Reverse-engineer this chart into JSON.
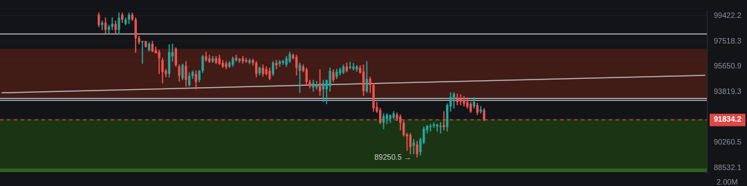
{
  "chart_data": {
    "type": "candlestick",
    "categories": [
      null,
      null,
      null,
      null,
      null,
      null,
      null,
      null,
      null,
      null,
      null,
      null,
      null,
      null,
      null,
      null,
      null,
      null,
      null,
      null,
      null,
      null,
      null,
      null,
      null,
      null,
      null,
      null,
      null,
      null,
      null,
      null,
      null,
      null,
      null,
      null,
      null,
      null,
      null,
      null,
      null,
      null,
      null,
      null,
      null,
      null,
      null,
      null,
      null,
      null,
      null,
      null,
      null,
      null,
      null,
      null,
      null,
      null,
      null,
      null,
      null,
      null,
      null,
      null,
      null,
      null,
      null,
      null,
      null,
      null,
      null,
      null,
      null,
      null,
      null,
      null,
      null,
      null,
      null,
      null,
      null,
      null,
      null,
      null,
      null,
      null,
      null,
      null,
      null,
      null,
      null,
      null,
      null,
      null,
      null,
      null,
      null,
      null,
      null,
      null,
      null,
      null,
      null,
      null,
      null,
      null,
      null,
      null,
      null,
      null,
      null,
      null,
      null,
      null,
      null,
      null,
      null,
      null,
      null,
      null,
      null,
      null,
      null,
      null,
      null,
      null,
      null,
      null,
      null,
      null,
      null,
      null,
      null,
      null,
      null,
      null,
      null,
      null,
      null,
      null,
      null,
      null,
      null,
      null,
      null,
      null,
      null,
      null,
      null,
      null,
      null,
      null,
      null,
      null,
      null,
      null,
      null,
      null,
      null,
      null,
      null,
      null,
      null,
      null,
      null,
      null,
      null,
      null,
      null,
      null,
      null,
      null,
      null,
      null,
      null,
      null,
      null,
      null,
      null,
      null,
      null,
      null,
      null,
      null,
      null,
      null,
      null,
      null,
      null,
      null,
      null,
      null,
      null,
      null,
      null,
      null,
      null,
      null,
      null,
      null,
      null,
      null,
      null,
      null,
      null,
      null,
      null,
      null,
      null,
      null,
      null
    ],
    "ohlc": [
      null,
      null,
      null,
      null,
      null,
      null,
      null,
      null,
      null,
      null,
      null,
      null,
      null,
      null,
      null,
      null,
      null,
      null,
      null,
      null,
      null,
      null,
      null,
      null,
      null,
      null,
      null,
      null,
      null,
      [
        99510,
        99650,
        98590,
        98730
      ],
      [
        98730,
        99050,
        98360,
        98910
      ],
      [
        98910,
        99280,
        98120,
        98360
      ],
      [
        98360,
        98730,
        98120,
        98590
      ],
      [
        98590,
        99280,
        98360,
        98820
      ],
      [
        98820,
        99050,
        98120,
        98360
      ],
      [
        98360,
        99650,
        98030,
        99280
      ],
      [
        99510,
        99650,
        98910,
        99140
      ],
      [
        98820,
        99280,
        98730,
        99140
      ],
      [
        99140,
        99650,
        98820,
        99510
      ],
      [
        99510,
        99650,
        99050,
        99140
      ],
      [
        99140,
        99280,
        96680,
        97750
      ],
      [
        97750,
        97890,
        97280,
        97430
      ],
      [
        97430,
        97520,
        95880,
        97520
      ],
      [
        97520,
        97520,
        97050,
        97100
      ],
      [
        96860,
        97430,
        96770,
        97330
      ],
      [
        97330,
        97520,
        96720,
        96770
      ],
      [
        96860,
        97100,
        96630,
        96630
      ],
      [
        96720,
        96860,
        95110,
        96260
      ],
      [
        96120,
        96260,
        94440,
        95250
      ],
      [
        95340,
        95470,
        94890,
        95110
      ],
      [
        95110,
        97280,
        94890,
        96720
      ],
      [
        96400,
        97330,
        96020,
        96720
      ],
      [
        96960,
        97050,
        95650,
        95740
      ],
      [
        95650,
        95790,
        94580,
        94980
      ],
      [
        94800,
        95840,
        94670,
        95790
      ],
      [
        95700,
        96020,
        94220,
        94670
      ],
      [
        94310,
        95200,
        94220,
        94980
      ],
      [
        94940,
        95340,
        94760,
        95250
      ],
      [
        95110,
        95340,
        94000,
        94530
      ],
      [
        94670,
        95380,
        94530,
        95340
      ],
      [
        95340,
        96490,
        95200,
        96400
      ],
      [
        96400,
        96720,
        96020,
        96120
      ],
      [
        96260,
        96490,
        95930,
        96020
      ],
      [
        96020,
        96400,
        95930,
        96260
      ],
      [
        96260,
        96400,
        95840,
        95930
      ],
      [
        96260,
        96490,
        95790,
        95840
      ],
      [
        95930,
        96120,
        95560,
        95650
      ],
      [
        95880,
        96020,
        95470,
        95610
      ],
      [
        95650,
        96020,
        95560,
        95930
      ],
      [
        95790,
        96350,
        95650,
        96260
      ],
      [
        96300,
        96490,
        96020,
        96120
      ],
      [
        96070,
        96260,
        95930,
        96210
      ],
      [
        96260,
        96400,
        95880,
        96020
      ],
      [
        96120,
        96260,
        95930,
        96020
      ],
      [
        95930,
        96210,
        95840,
        96120
      ],
      [
        96120,
        96210,
        95740,
        95930
      ],
      [
        95930,
        96020,
        94890,
        95110
      ],
      [
        95160,
        95650,
        95030,
        95560
      ],
      [
        95560,
        95790,
        94940,
        95110
      ],
      [
        95470,
        95650,
        95030,
        95110
      ],
      [
        95340,
        95560,
        94670,
        94760
      ],
      [
        95110,
        96020,
        94980,
        95930
      ],
      [
        95930,
        96120,
        95470,
        95740
      ],
      [
        95840,
        96120,
        95650,
        96020
      ],
      [
        95930,
        96120,
        95790,
        96070
      ],
      [
        95790,
        96400,
        95650,
        96260
      ],
      [
        96020,
        96720,
        95930,
        96580
      ],
      [
        96490,
        96580,
        96210,
        96260
      ],
      [
        96350,
        96490,
        95030,
        95560
      ],
      [
        95340,
        95930,
        93770,
        95790
      ],
      [
        95650,
        95790,
        95250,
        95340
      ],
      [
        95430,
        95560,
        94310,
        94530
      ],
      [
        94530,
        94670,
        94090,
        94220
      ],
      [
        94130,
        94670,
        93860,
        94440
      ],
      [
        94130,
        94580,
        94000,
        94310
      ],
      [
        94440,
        95430,
        93550,
        93860
      ],
      [
        94000,
        94670,
        93100,
        94440
      ],
      [
        94000,
        94670,
        92970,
        94670
      ],
      [
        94220,
        95560,
        93860,
        95340
      ],
      [
        95250,
        95430,
        94530,
        94670
      ],
      [
        94890,
        95470,
        94760,
        95290
      ],
      [
        95160,
        95560,
        95030,
        95430
      ],
      [
        95200,
        95790,
        95110,
        95650
      ],
      [
        95650,
        95930,
        95250,
        95340
      ],
      [
        95560,
        95980,
        95470,
        95650
      ],
      [
        95470,
        95880,
        95380,
        95650
      ],
      [
        95430,
        95740,
        95290,
        95650
      ],
      [
        95560,
        95740,
        95160,
        95200
      ],
      [
        95290,
        95790,
        93550,
        93860
      ],
      [
        93860,
        96020,
        93770,
        94760
      ],
      [
        94760,
        94890,
        93770,
        94310
      ],
      [
        94310,
        94440,
        92430,
        92650
      ],
      [
        92740,
        93100,
        92340,
        92430
      ],
      [
        92520,
        92650,
        91550,
        91640
      ],
      [
        91640,
        92290,
        91210,
        92110
      ],
      [
        91900,
        92290,
        91550,
        92200
      ],
      [
        91900,
        92200,
        91640,
        92160
      ],
      [
        91980,
        92430,
        91900,
        92290
      ],
      [
        92200,
        92340,
        91770,
        91900
      ],
      [
        92070,
        92200,
        91120,
        91640
      ],
      [
        91640,
        91770,
        90690,
        90780
      ],
      [
        90820,
        90910,
        89700,
        90690
      ],
      [
        90780,
        90910,
        89480,
        89960
      ],
      [
        90040,
        90480,
        89480,
        90260
      ],
      [
        90130,
        90350,
        89250.5,
        89480
      ],
      [
        89610,
        90560,
        89400,
        90480
      ],
      [
        90260,
        91340,
        90170,
        91210
      ],
      [
        91120,
        91470,
        90910,
        91420
      ],
      [
        91340,
        91550,
        91040,
        91420
      ],
      [
        91420,
        91640,
        91290,
        91510
      ],
      [
        91380,
        91550,
        91040,
        91510
      ],
      [
        91340,
        91640,
        90910,
        91420
      ],
      [
        91470,
        92430,
        91120,
        91340
      ],
      [
        91340,
        92970,
        91040,
        92880
      ],
      [
        92790,
        93770,
        92430,
        93460
      ],
      [
        93330,
        93770,
        92650,
        93680
      ],
      [
        93420,
        93680,
        92880,
        93100
      ],
      [
        93330,
        93640,
        92880,
        93100
      ],
      [
        93240,
        93510,
        92790,
        92970
      ],
      [
        93100,
        93420,
        92650,
        92740
      ],
      [
        92970,
        93100,
        92340,
        92430
      ],
      [
        92790,
        93420,
        92650,
        93100
      ],
      [
        92880,
        93010,
        92200,
        92340
      ],
      [
        92430,
        92790,
        92290,
        92560
      ],
      [
        92520,
        92650,
        91770,
        91834.2
      ],
      null,
      null,
      null,
      null,
      null,
      null,
      null,
      null,
      null,
      null,
      null,
      null,
      null,
      null,
      null,
      null,
      null,
      null,
      null,
      null,
      null,
      null,
      null,
      null,
      null,
      null,
      null,
      null,
      null,
      null,
      null,
      null,
      null,
      null,
      null,
      null,
      null,
      null,
      null,
      null,
      null,
      null,
      null,
      null,
      null,
      null,
      null,
      null,
      null,
      null,
      null,
      null,
      null,
      null,
      null,
      null,
      null,
      null,
      null,
      null,
      null,
      null,
      null,
      null,
      null,
      null
    ],
    "series": [
      {
        "type": "line",
        "color": "#bdbdbd",
        "values": [
          93753,
          null,
          null,
          null,
          null,
          null,
          null,
          null,
          null,
          null,
          null,
          null,
          null,
          null,
          null,
          null,
          null,
          null,
          null,
          null,
          null,
          null,
          null,
          null,
          null,
          null,
          null,
          null,
          null,
          null,
          null,
          null,
          null,
          null,
          null,
          null,
          null,
          null,
          null,
          null,
          null,
          null,
          null,
          null,
          null,
          null,
          null,
          null,
          null,
          null,
          null,
          null,
          null,
          null,
          null,
          null,
          null,
          null,
          null,
          null,
          null,
          null,
          null,
          null,
          null,
          null,
          null,
          null,
          null,
          null,
          null,
          null,
          null,
          null,
          null,
          null,
          null,
          null,
          null,
          null,
          null,
          null,
          null,
          null,
          null,
          null,
          null,
          null,
          null,
          null,
          null,
          null,
          null,
          null,
          null,
          null,
          null,
          null,
          null,
          null,
          null,
          null,
          null,
          null,
          null,
          null,
          null,
          null,
          null,
          null,
          null,
          null,
          null,
          null,
          null,
          null,
          null,
          null,
          null,
          null,
          null,
          null,
          null,
          null,
          null,
          null,
          null,
          null,
          null,
          null,
          null,
          null,
          null,
          null,
          null,
          null,
          null,
          null,
          null,
          null,
          null,
          null,
          null,
          null,
          null,
          null,
          null,
          null,
          null,
          null,
          null,
          null,
          null,
          null,
          null,
          null,
          null,
          null,
          null,
          null,
          null,
          null,
          null,
          null,
          null,
          null,
          null,
          null,
          null,
          null,
          null,
          null,
          null,
          null,
          null,
          null,
          null,
          null,
          null,
          null,
          null,
          null,
          null,
          null,
          null,
          null,
          null,
          null,
          null,
          null,
          null,
          null,
          null,
          null,
          null,
          null,
          null,
          null,
          null,
          null,
          null,
          null,
          null,
          null,
          null,
          null,
          null,
          null,
          null,
          null,
          95015
        ]
      }
    ],
    "log": true,
    "ylim": [
      88197,
      99755
    ],
    "yticks": [
      99422.2,
      97518.3,
      95650.9,
      93819.3,
      90260.5,
      88532.1
    ],
    "grid": "y",
    "tick_labels": "y",
    "bands": [
      {
        "axis": "y",
        "from": 93395,
        "to": 96155,
        "color": "#4a1c16"
      },
      {
        "axis": "y",
        "from": 96070,
        "to": 96960,
        "color": "#4a1c16"
      },
      {
        "axis": "y",
        "from": 88280,
        "to": 91892,
        "color": "#1d3a14"
      },
      {
        "axis": "y",
        "from": 88238,
        "to": 88492,
        "color": "#2f6b19"
      }
    ],
    "ref_lines": [
      {
        "axis": "y",
        "value": 98055,
        "color": "#d9d9d9"
      },
      {
        "axis": "y",
        "value": 93351,
        "color": "#d9d9d9"
      },
      {
        "axis": "y",
        "value": 93217,
        "color": "#d9d9d9"
      },
      {
        "axis": "y",
        "value": 91834.2,
        "label": "91834.2",
        "color": "#e04848",
        "line_style": "dashed"
      }
    ],
    "annotations": [
      "89250.5 →",
      "2.00M"
    ]
  }
}
